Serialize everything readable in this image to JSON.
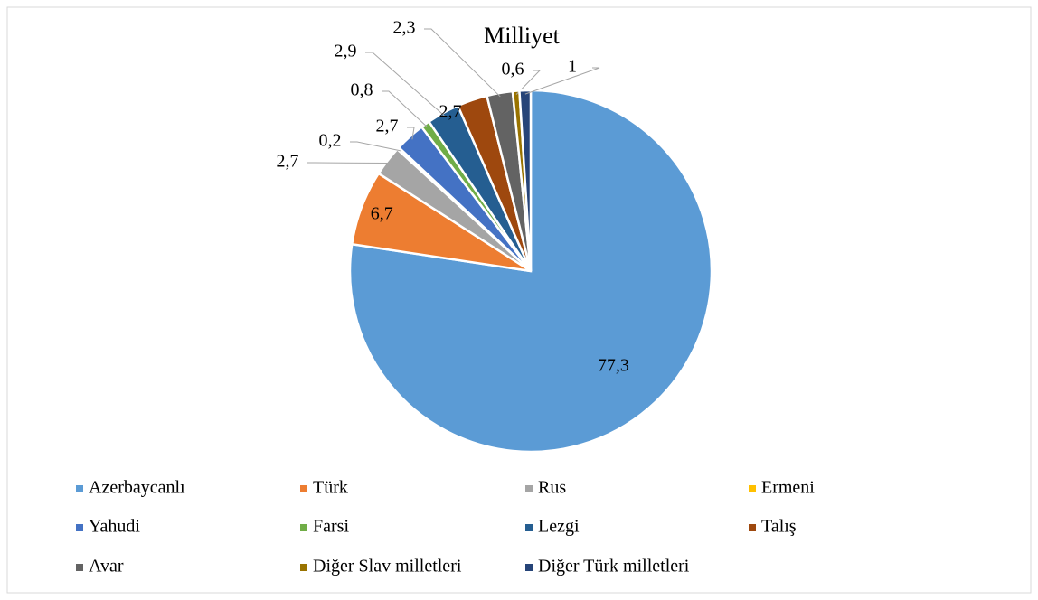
{
  "chart_data": {
    "type": "pie",
    "title": "Milliyet",
    "categories": [
      "Azerbaycanlı",
      "Türk",
      "Rus",
      "Ermeni",
      "Yahudi",
      "Farsi",
      "Lezgi",
      "Talış",
      "Avar",
      "Diğer Slav milletleri",
      "Diğer Türk milletleri"
    ],
    "values": [
      77.3,
      6.7,
      2.7,
      0.2,
      2.7,
      0.8,
      2.9,
      2.7,
      2.3,
      0.6,
      1
    ],
    "value_labels": [
      "77,3",
      "6,7",
      "2,7",
      "0,2",
      "2,7",
      "0,8",
      "2,9",
      "2,7",
      "2,3",
      "0,6",
      "1"
    ],
    "colors": [
      "#5b9bd5",
      "#ed7d31",
      "#a5a5a5",
      "#ffc000",
      "#4472c4",
      "#70ad47",
      "#255e91",
      "#9e480e",
      "#636363",
      "#997300",
      "#264478"
    ],
    "legend": "bottom"
  }
}
